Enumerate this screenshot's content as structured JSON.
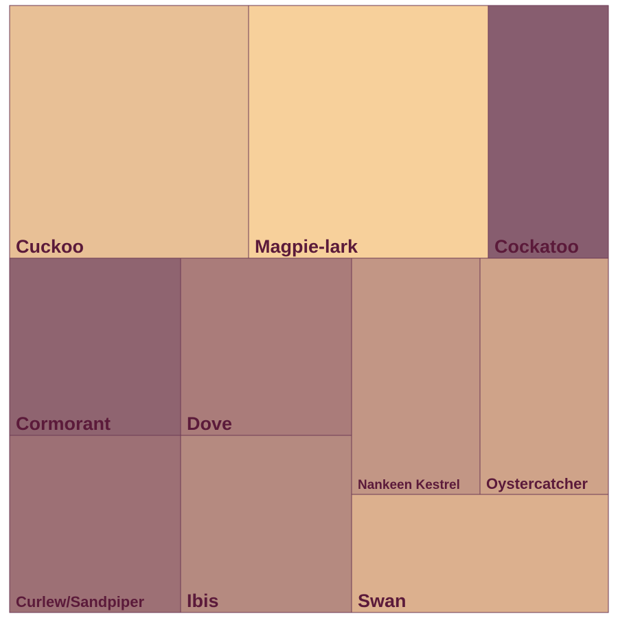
{
  "chart_data": {
    "type": "treemap",
    "title": "",
    "tiles": [
      {
        "label": "Cuckoo",
        "value": 128,
        "color": "#e8c096"
      },
      {
        "label": "Magpie-lark",
        "value": 128,
        "color": "#f7d09b"
      },
      {
        "label": "Cockatoo",
        "value": 64,
        "color": "#875d6f"
      },
      {
        "label": "Cormorant",
        "value": 64,
        "color": "#8f6470"
      },
      {
        "label": "Dove",
        "value": 64,
        "color": "#aa7c7a"
      },
      {
        "label": "Curlew/Sandpiper",
        "value": 64,
        "color": "#9d7075"
      },
      {
        "label": "Ibis",
        "value": 64,
        "color": "#b58a80"
      },
      {
        "label": "Nankeen Kestrel",
        "value": 64,
        "color": "#c29685"
      },
      {
        "label": "Oystercatcher",
        "value": 64,
        "color": "#cfa389"
      },
      {
        "label": "Swan",
        "value": 64,
        "color": "#dcb08e"
      }
    ]
  }
}
